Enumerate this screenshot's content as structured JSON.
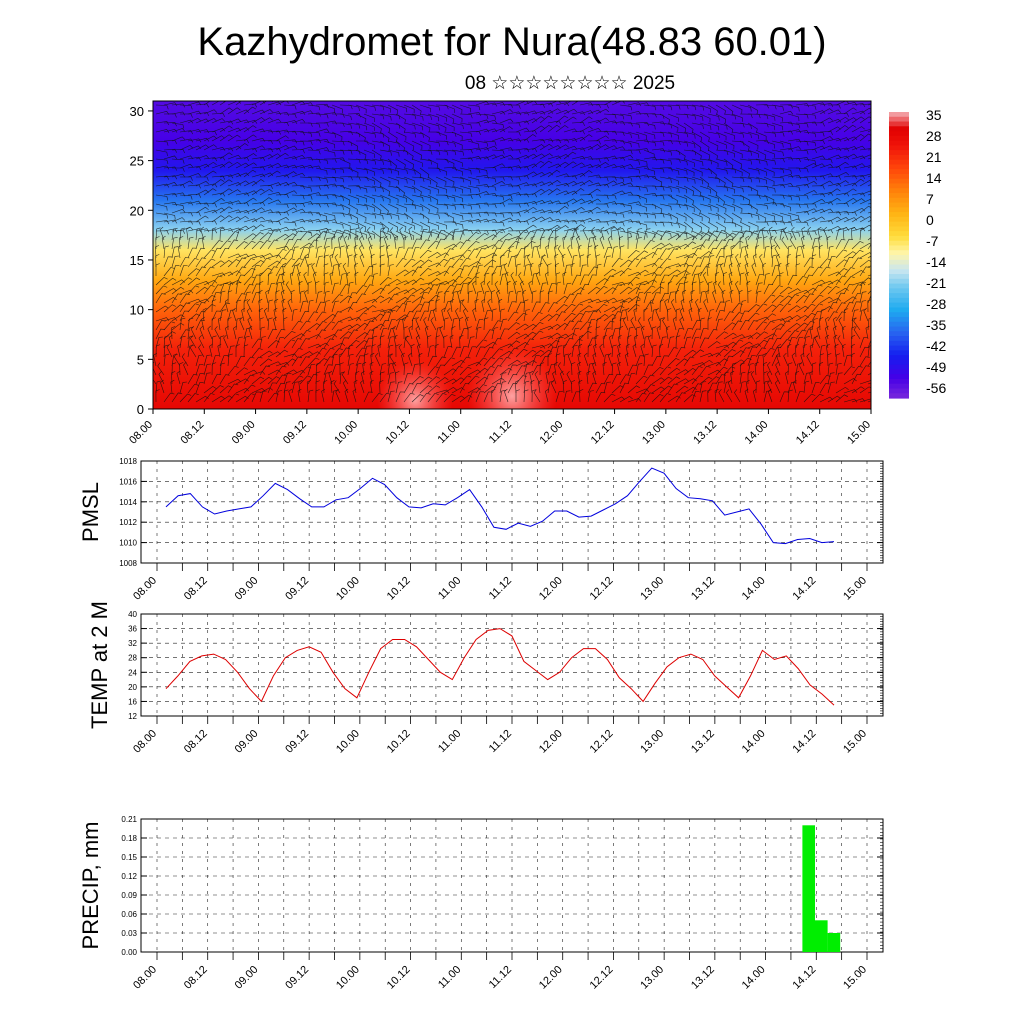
{
  "title": "Kazhydromet for Nura(48.83 60.01)",
  "subtitle": "08 ☆☆☆☆☆☆☆☆ 2025",
  "time_labels": [
    "08.00",
    "08.12",
    "09.00",
    "09.12",
    "10.00",
    "10.12",
    "11.00",
    "11.12",
    "12.00",
    "12.12",
    "13.00",
    "13.12",
    "14.00",
    "14.12",
    "15.00"
  ],
  "colors": {
    "pmsl_line": "#0000dd",
    "temp_line": "#dd0000",
    "precip_bar": "#00ee00"
  },
  "chart_data": [
    {
      "type": "heatmap",
      "ylim": [
        0,
        31
      ],
      "yticks": [
        0,
        5,
        10,
        15,
        20,
        25,
        30
      ],
      "colorbar_labels": [
        "35",
        "28",
        "21",
        "14",
        "7",
        "0",
        "-7",
        "-14",
        "-21",
        "-28",
        "-35",
        "-42",
        "-49",
        "-56"
      ],
      "colorbar_range": [
        -63,
        38
      ],
      "overlay": "wind barbs",
      "vertical_profile": [
        {
          "level": 0,
          "value": 30
        },
        {
          "level": 6,
          "value": 24
        },
        {
          "level": 10,
          "value": 14
        },
        {
          "level": 13,
          "value": 4
        },
        {
          "level": 16,
          "value": -8
        },
        {
          "level": 18,
          "value": -22
        },
        {
          "level": 21,
          "value": -38
        },
        {
          "level": 24,
          "value": -50
        },
        {
          "level": 27,
          "value": -56
        },
        {
          "level": 31,
          "value": -58
        }
      ]
    },
    {
      "type": "line",
      "ylabel": "PMSL",
      "ylim": [
        1008,
        1018
      ],
      "yticks": [
        1008,
        1010,
        1012,
        1014,
        1016,
        1018
      ],
      "series": [
        {
          "values": [
            1013.5,
            1014.6,
            1014.8,
            1013.5,
            1012.8,
            1013.1,
            1013.3,
            1013.5,
            1014.6,
            1015.8,
            1015.2,
            1014.3,
            1013.5,
            1013.5,
            1014.2,
            1014.4,
            1015.3,
            1016.3,
            1015.7,
            1014.4,
            1013.5,
            1013.4,
            1013.8,
            1013.7,
            1014.4,
            1015.2,
            1013.5,
            1011.5,
            1011.3,
            1011.9,
            1011.6,
            1012.1,
            1013.1,
            1013.1,
            1012.5,
            1012.6,
            1013.2,
            1013.8,
            1014.6,
            1016.0,
            1017.3,
            1016.8,
            1015.3,
            1014.4,
            1014.3,
            1014.1,
            1012.7,
            1013.0,
            1013.3,
            1011.8,
            1010.0,
            1009.9,
            1010.3,
            1010.4,
            1010.0,
            1010.1
          ]
        }
      ]
    },
    {
      "type": "line",
      "ylabel": "TEMP at 2 M",
      "ylim": [
        12,
        40
      ],
      "yticks": [
        12,
        16,
        20,
        24,
        28,
        32,
        36,
        40
      ],
      "series": [
        {
          "values": [
            19.5,
            23,
            27,
            28.5,
            29,
            27.5,
            24,
            19.5,
            16,
            23,
            28,
            30,
            31,
            29.5,
            24,
            19.5,
            17,
            24,
            30.5,
            33,
            33,
            31,
            27.5,
            24,
            22,
            28,
            33,
            35.5,
            36,
            34,
            27,
            24.5,
            22,
            24,
            28,
            30.5,
            30.5,
            27.5,
            22.5,
            19.5,
            16,
            21,
            25.5,
            28,
            29,
            27.5,
            23,
            20,
            17,
            23,
            30,
            27.5,
            28.5,
            25,
            20.5,
            18,
            15
          ]
        }
      ]
    },
    {
      "type": "bar",
      "ylabel": "PRECIP, mm",
      "ylim": [
        0,
        0.21
      ],
      "yticks": [
        "0.00",
        "0.03",
        "0.06",
        "0.09",
        "0.12",
        "0.15",
        "0.18",
        "0.21"
      ],
      "bars": [
        {
          "start": 6.25,
          "end": 6.375,
          "value": 0.2
        },
        {
          "start": 6.375,
          "end": 6.5,
          "value": 0.05
        },
        {
          "start": 6.5,
          "end": 6.625,
          "value": 0.03
        }
      ]
    }
  ]
}
